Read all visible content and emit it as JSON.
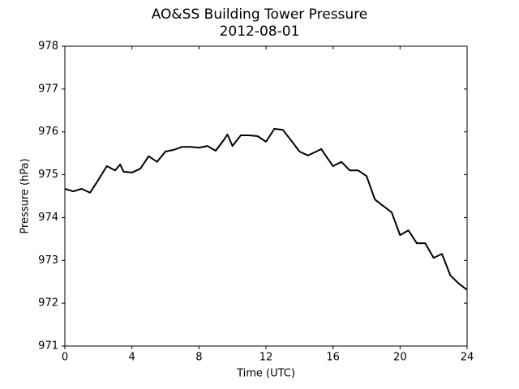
{
  "chart_data": {
    "type": "line",
    "title": "AO&SS Building Tower Pressure",
    "subtitle": "2012-08-01",
    "x_label": "Time (UTC)",
    "y_label": "Pressure (hPa)",
    "xlim": [
      0,
      24
    ],
    "xticks": [
      0,
      4,
      8,
      12,
      16,
      20,
      24
    ],
    "ylim": [
      971,
      978
    ],
    "yticks": [
      971,
      972,
      973,
      974,
      975,
      976,
      977,
      978
    ],
    "grid": false,
    "x": [
      0,
      0.5,
      1,
      1.5,
      2,
      2.5,
      3,
      3.3,
      3.5,
      4,
      4.5,
      5,
      5.5,
      6,
      6.5,
      7,
      7.5,
      8,
      8.5,
      9,
      9.5,
      9.7,
      10,
      10.5,
      11,
      11.5,
      12,
      12.5,
      13,
      13.5,
      14,
      14.5,
      15,
      15.3,
      15.5,
      16,
      16.5,
      17,
      17.5,
      18,
      18.5,
      19,
      19.5,
      20,
      20.5,
      21,
      21.5,
      22,
      22.5,
      23,
      23.5,
      24
    ],
    "series": [
      {
        "color": "#000000",
        "values": [
          974.67,
          974.61,
          974.67,
          974.58,
          974.88,
          975.2,
          975.1,
          975.24,
          975.07,
          975.05,
          975.14,
          975.43,
          975.3,
          975.54,
          975.58,
          975.65,
          975.65,
          975.63,
          975.67,
          975.56,
          975.82,
          975.94,
          975.67,
          975.92,
          975.92,
          975.9,
          975.77,
          976.07,
          976.05,
          975.8,
          975.54,
          975.45,
          975.54,
          975.6,
          975.48,
          975.2,
          975.3,
          975.1,
          975.1,
          974.97,
          974.42,
          974.27,
          974.12,
          973.59,
          973.7,
          973.4,
          973.4,
          973.06,
          973.15,
          972.65,
          972.46,
          972.31
        ]
      }
    ]
  }
}
